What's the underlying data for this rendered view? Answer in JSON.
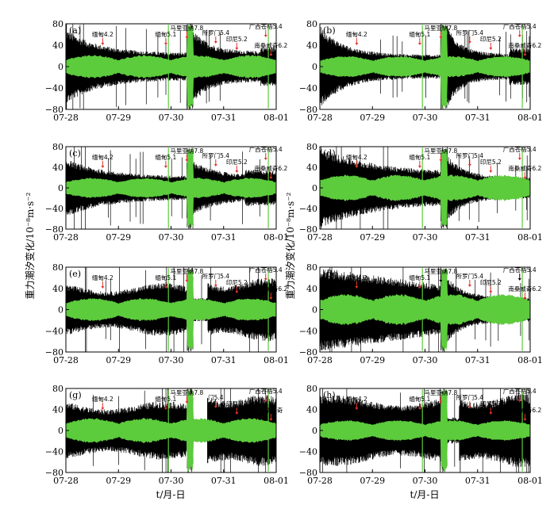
{
  "figure": {
    "ylabel": "重力潮汐变化/10⁻⁸m·s⁻²",
    "xlabel": "t/月-日",
    "colors": {
      "signal": "#000000",
      "tide": "#5ccb3c",
      "arrow": "#e8312a"
    }
  },
  "chart_data": [
    {
      "type": "line",
      "label": "(a)",
      "x_ticks": [
        "07-28",
        "07-29",
        "07-30",
        "07-31",
        "08-01"
      ],
      "y_ticks": [
        "80",
        "40",
        "0",
        "−40",
        "−80"
      ],
      "ylim": [
        -80,
        80
      ],
      "events": [
        {
          "text": "缅甸4.2",
          "x": 28.7,
          "arrow": "red"
        },
        {
          "text": "缅甸5.1",
          "x": 29.9,
          "arrow": "red"
        },
        {
          "text": "马里亚纳7.8",
          "x": 30.3,
          "arrow": "red"
        },
        {
          "text": "所罗门5.4",
          "x": 30.85,
          "arrow": "red"
        },
        {
          "text": "印尼5.2",
          "x": 31.25,
          "arrow": "red"
        },
        {
          "text": "广西苍梧5.4",
          "x": 31.8,
          "arrow": "red"
        },
        {
          "text": "南桑威奇6.2",
          "x": 31.9,
          "arrow": "red"
        }
      ]
    },
    {
      "type": "line",
      "label": "(b)",
      "x_ticks": [
        "07-28",
        "07-29",
        "07-30",
        "07-31",
        "08-01"
      ],
      "y_ticks": [
        "80",
        "40",
        "0",
        "−40",
        "−80"
      ],
      "ylim": [
        -80,
        80
      ],
      "events": [
        {
          "text": "缅甸4.2",
          "x": 28.7,
          "arrow": "red"
        },
        {
          "text": "缅甸5.1",
          "x": 29.9,
          "arrow": "red"
        },
        {
          "text": "马里亚纳7.8",
          "x": 30.3,
          "arrow": "red"
        },
        {
          "text": "所罗门5.4",
          "x": 30.85,
          "arrow": "red"
        },
        {
          "text": "印尼5.2",
          "x": 31.25,
          "arrow": "red"
        },
        {
          "text": "广西苍梧5.4",
          "x": 31.8,
          "arrow": "red"
        },
        {
          "text": "南桑威奇6.2",
          "x": 31.9,
          "arrow": "red"
        }
      ]
    },
    {
      "type": "line",
      "label": "(c)",
      "x_ticks": [
        "07-28",
        "07-29",
        "07-30",
        "07-31",
        "08-01"
      ],
      "y_ticks": [
        "80",
        "40",
        "0",
        "−40",
        "−80"
      ],
      "ylim": [
        -80,
        80
      ],
      "events": [
        {
          "text": "缅甸4.2",
          "x": 28.7,
          "arrow": "red"
        },
        {
          "text": "缅甸5.1",
          "x": 29.9,
          "arrow": "red"
        },
        {
          "text": "马里亚纳7.8",
          "x": 30.3,
          "arrow": "red"
        },
        {
          "text": "所罗门5.4",
          "x": 30.85,
          "arrow": "red"
        },
        {
          "text": "印尼5.2",
          "x": 31.25,
          "arrow": "red"
        },
        {
          "text": "广西苍梧5.4",
          "x": 31.8,
          "arrow": "red"
        },
        {
          "text": "南桑威奇6.2",
          "x": 31.9,
          "arrow": "red"
        }
      ]
    },
    {
      "type": "line",
      "label": "(d)",
      "x_ticks": [
        "07-28",
        "07-29",
        "07-30",
        "07-31",
        "08-01"
      ],
      "y_ticks": [
        "80",
        "40",
        "0",
        "−40",
        "−80"
      ],
      "ylim": [
        -80,
        80
      ],
      "events": [
        {
          "text": "缅甸4.2",
          "x": 28.7,
          "arrow": "red"
        },
        {
          "text": "缅甸5.1",
          "x": 29.9,
          "arrow": "red"
        },
        {
          "text": "马里亚纳7.8",
          "x": 30.3,
          "arrow": "red"
        },
        {
          "text": "所罗门5.4",
          "x": 30.85,
          "arrow": "red"
        },
        {
          "text": "印尼5.2",
          "x": 31.25,
          "arrow": "red"
        },
        {
          "text": "广西苍梧5.4",
          "x": 31.8,
          "arrow": "red"
        },
        {
          "text": "南桑威奇6.2",
          "x": 31.9,
          "arrow": "red"
        }
      ]
    },
    {
      "type": "line",
      "label": "(e)",
      "x_ticks": [
        "07-28",
        "07-29",
        "07-30",
        "07-31",
        "08-01"
      ],
      "y_ticks": [
        "80",
        "40",
        "0",
        "−40",
        "−80"
      ],
      "ylim": [
        -80,
        80
      ],
      "events": [
        {
          "text": "缅甸4.2",
          "x": 28.7,
          "arrow": "red"
        },
        {
          "text": "缅甸5.1",
          "x": 29.9,
          "arrow": "red"
        },
        {
          "text": "马里亚纳7.8",
          "x": 30.3,
          "arrow": "red"
        },
        {
          "text": "所罗门5.4",
          "x": 30.85,
          "arrow": "red"
        },
        {
          "text": "印尼5.2",
          "x": 31.25,
          "arrow": "red"
        },
        {
          "text": "广西苍梧5.4",
          "x": 31.8,
          "arrow": "red"
        },
        {
          "text": "南桑威奇6.2",
          "x": 31.9,
          "arrow": "red"
        }
      ]
    },
    {
      "type": "line",
      "label": "(f)",
      "x_ticks": [
        "07-28",
        "07-29",
        "07-30",
        "07-31",
        "08-01"
      ],
      "y_ticks": [
        "80",
        "40",
        "0",
        "−40",
        "−80"
      ],
      "ylim": [
        -80,
        80
      ],
      "events": [
        {
          "text": "缅甸4.2",
          "x": 28.7,
          "arrow": "red"
        },
        {
          "text": "缅甸5.1",
          "x": 29.9,
          "arrow": "red"
        },
        {
          "text": "马里亚纳7.8",
          "x": 30.3,
          "arrow": "black"
        },
        {
          "text": "所罗门5.4",
          "x": 30.85,
          "arrow": "red"
        },
        {
          "text": "印尼5.2",
          "x": 31.25,
          "arrow": "red"
        },
        {
          "text": "广西苍梧5.4",
          "x": 31.8,
          "arrow": "black"
        },
        {
          "text": "南桑威奇6.2",
          "x": 31.9,
          "arrow": "red"
        }
      ]
    },
    {
      "type": "line",
      "label": "(g)",
      "x_ticks": [
        "07-28",
        "07-29",
        "07-30",
        "07-31",
        "08-01"
      ],
      "y_ticks": [
        "80",
        "40",
        "0",
        "−40",
        "−80"
      ],
      "ylim": [
        -80,
        80
      ],
      "events": [
        {
          "text": "缅甸4.2",
          "x": 28.7,
          "arrow": "red"
        },
        {
          "text": "缅甸5.1",
          "x": 29.9,
          "arrow": "red"
        },
        {
          "text": "马里亚纳7.8",
          "x": 30.3,
          "arrow": "red"
        },
        {
          "text": "门5.4",
          "x": 30.85,
          "arrow": "red"
        },
        {
          "text": "印尼5.2",
          "x": 31.25,
          "arrow": "red"
        },
        {
          "text": "广西苍梧5.4",
          "x": 31.8,
          "arrow": "red"
        },
        {
          "text": "南桑威奇",
          "x": 31.9,
          "arrow": "red"
        }
      ]
    },
    {
      "type": "line",
      "label": "(h)",
      "x_ticks": [
        "07-28",
        "07-29",
        "07-30",
        "07-31",
        "08-01"
      ],
      "y_ticks": [
        "80",
        "40",
        "0",
        "−40",
        "−80"
      ],
      "ylim": [
        -80,
        80
      ],
      "events": [
        {
          "text": "缅甸4.2",
          "x": 28.7,
          "arrow": "red"
        },
        {
          "text": "缅甸5.1",
          "x": 29.9,
          "arrow": "red"
        },
        {
          "text": "马里亚纳7.8",
          "x": 30.3,
          "arrow": "red"
        },
        {
          "text": "所罗门5.4",
          "x": 30.85,
          "arrow": "red"
        },
        {
          "text": "印尼5.2",
          "x": 31.25,
          "arrow": "red"
        },
        {
          "text": "广西苍梧5.4",
          "x": 31.8,
          "arrow": "red"
        },
        {
          "text": "南桑威奇6.2",
          "x": 31.9,
          "arrow": "red"
        }
      ]
    }
  ]
}
